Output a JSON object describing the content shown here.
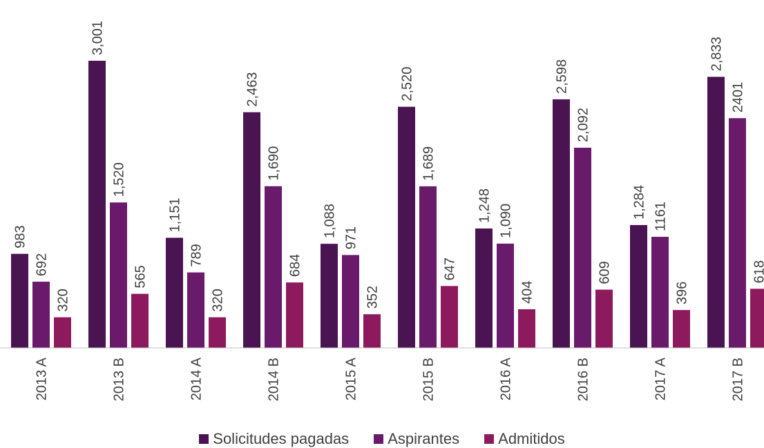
{
  "chart_data": {
    "type": "bar",
    "categories": [
      "2013 A",
      "2013 B",
      "2014 A",
      "2014 B",
      "2015 A",
      "2015 B",
      "2016 A",
      "2016 B",
      "2017 A",
      "2017 B"
    ],
    "series": [
      {
        "name": "Solicitudes pagadas",
        "color": "#4a1452",
        "values": [
          983,
          3001,
          1151,
          2463,
          1088,
          2520,
          1248,
          2598,
          1284,
          2833
        ],
        "labels": [
          "983",
          "3,001",
          "1,151",
          "2,463",
          "1,088",
          "2,520",
          "1,248",
          "2,598",
          "1,284",
          "2,833"
        ]
      },
      {
        "name": "Aspirantes",
        "color": "#6a1a6a",
        "values": [
          692,
          1520,
          789,
          1690,
          971,
          1689,
          1090,
          2092,
          1161,
          2401
        ],
        "labels": [
          "692",
          "1,520",
          "789",
          "1,690",
          "971",
          "1,689",
          "1,090",
          "2,092",
          "1161",
          "2401"
        ]
      },
      {
        "name": "Admitidos",
        "color": "#8e1a5e",
        "values": [
          320,
          565,
          320,
          684,
          352,
          647,
          404,
          609,
          396,
          618
        ],
        "labels": [
          "320",
          "565",
          "320",
          "684",
          "352",
          "647",
          "404",
          "609",
          "396",
          "618"
        ]
      }
    ],
    "ylim": [
      0,
      3001
    ],
    "legend_position": "bottom",
    "grid": false
  }
}
